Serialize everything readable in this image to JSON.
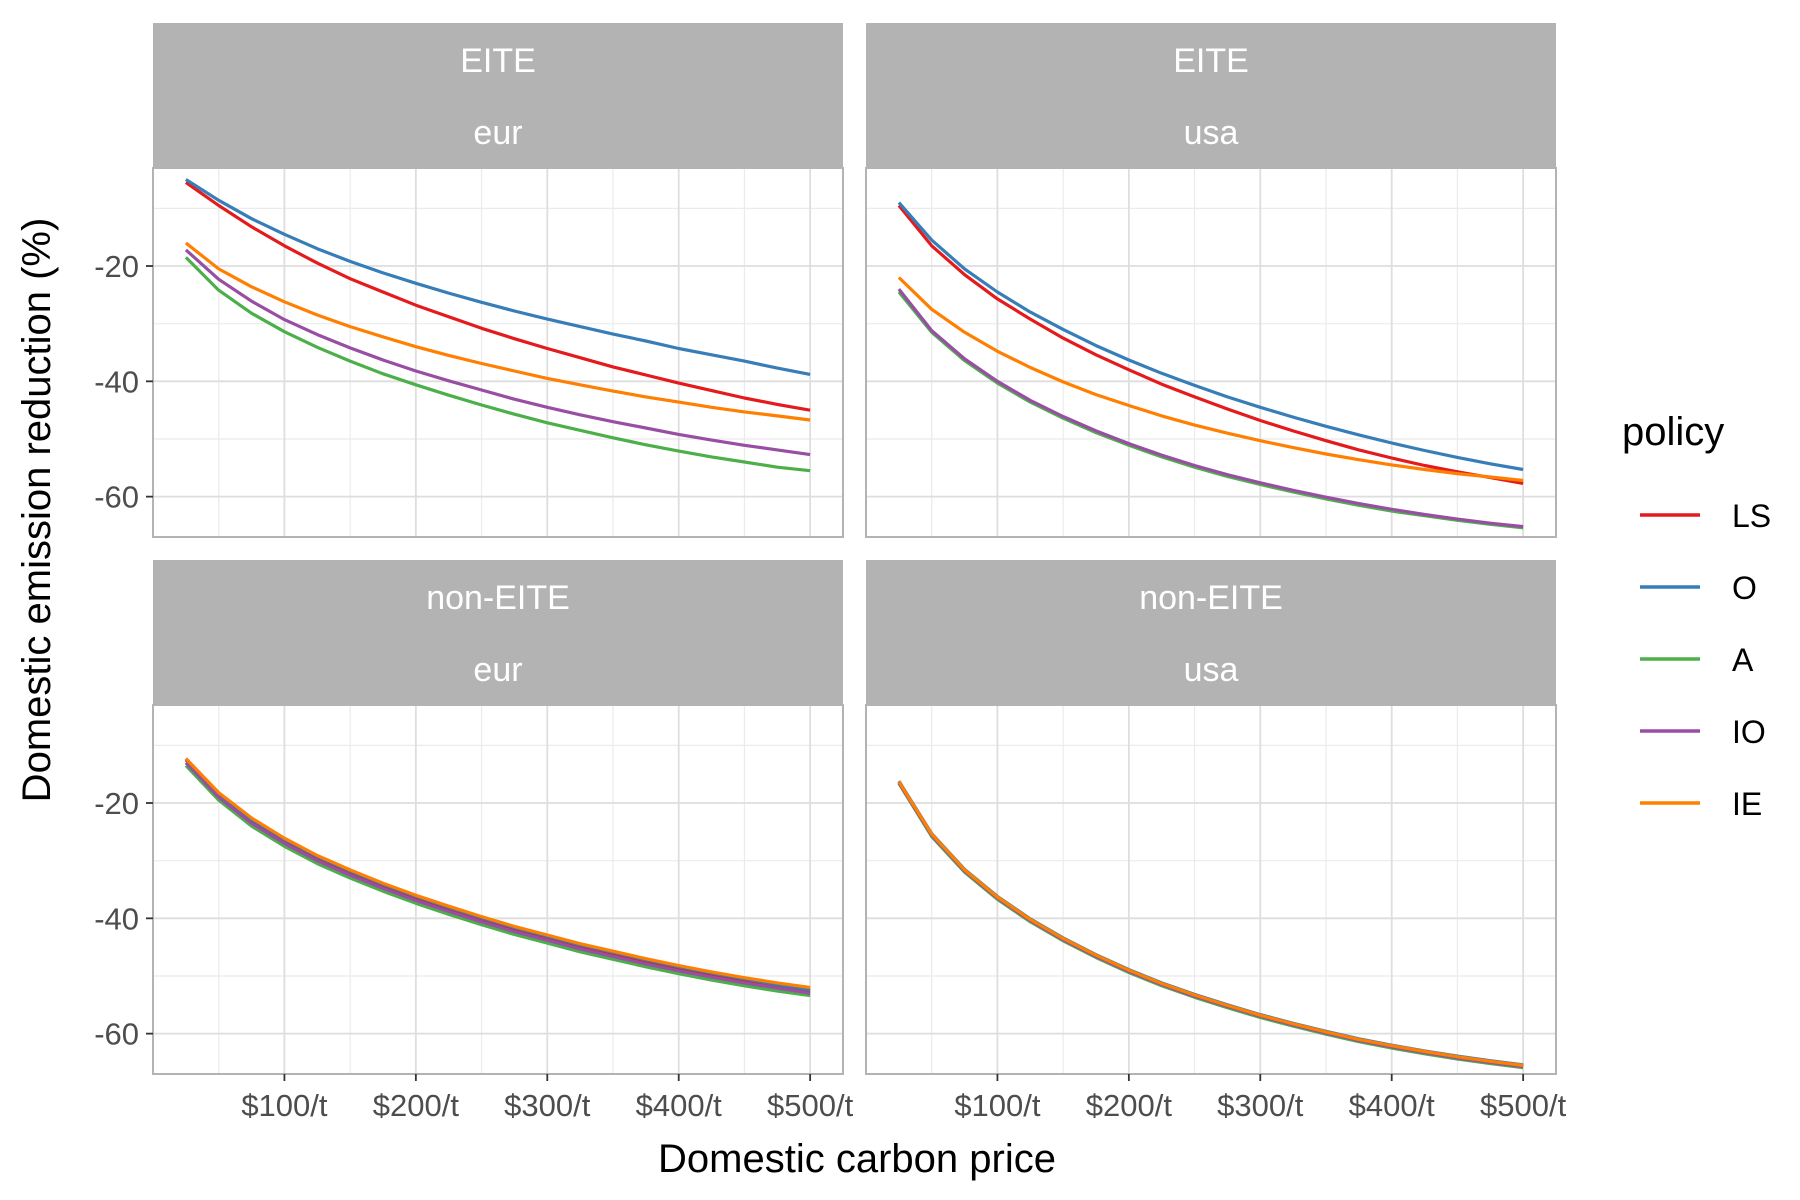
{
  "chart_data": {
    "type": "line",
    "xlabel": "Domestic carbon price",
    "ylabel": "Domestic emission reduction (%)",
    "x": [
      25,
      50,
      75,
      100,
      125,
      150,
      175,
      200,
      225,
      250,
      275,
      300,
      325,
      350,
      375,
      400,
      425,
      450,
      475,
      500
    ],
    "xlim": [
      0,
      525
    ],
    "x_ticks": [
      100,
      200,
      300,
      400,
      500
    ],
    "x_tick_labels": [
      "$100/t",
      "$200/t",
      "$300/t",
      "$400/t",
      "$500/t"
    ],
    "ylim": [
      -67,
      -3
    ],
    "y_ticks": [
      -20,
      -40,
      -60
    ],
    "y_tick_labels": [
      "-20",
      "-40",
      "-60"
    ],
    "grid": true,
    "legend": {
      "title": "policy",
      "position": "right",
      "entries": [
        {
          "label": "LS",
          "color": "#E41A1C"
        },
        {
          "label": "O",
          "color": "#377EB8"
        },
        {
          "label": "A",
          "color": "#4DAF4A"
        },
        {
          "label": "IO",
          "color": "#984EA3"
        },
        {
          "label": "IE",
          "color": "#FF7F00"
        }
      ]
    },
    "panels": [
      {
        "strip_top": "EITE",
        "strip_bottom": "eur",
        "series": [
          {
            "name": "LS",
            "values": [
              -5.5,
              -9.5,
              -13.2,
              -16.5,
              -19.5,
              -22.2,
              -24.5,
              -26.8,
              -28.8,
              -30.8,
              -32.6,
              -34.3,
              -35.9,
              -37.5,
              -38.9,
              -40.3,
              -41.6,
              -42.9,
              -44.0,
              -45.0
            ]
          },
          {
            "name": "O",
            "values": [
              -5.0,
              -8.6,
              -11.8,
              -14.5,
              -17.0,
              -19.2,
              -21.2,
              -23.0,
              -24.7,
              -26.3,
              -27.8,
              -29.2,
              -30.5,
              -31.8,
              -33.0,
              -34.3,
              -35.4,
              -36.5,
              -37.7,
              -38.8
            ]
          },
          {
            "name": "A",
            "values": [
              -18.5,
              -24.2,
              -28.2,
              -31.4,
              -34.1,
              -36.5,
              -38.7,
              -40.6,
              -42.4,
              -44.1,
              -45.7,
              -47.2,
              -48.5,
              -49.8,
              -51.0,
              -52.1,
              -53.1,
              -54.0,
              -54.9,
              -55.5
            ]
          },
          {
            "name": "IO",
            "values": [
              -17.2,
              -22.3,
              -26.1,
              -29.3,
              -31.9,
              -34.2,
              -36.3,
              -38.2,
              -39.9,
              -41.5,
              -43.1,
              -44.5,
              -45.8,
              -47.0,
              -48.1,
              -49.2,
              -50.2,
              -51.1,
              -51.9,
              -52.7
            ]
          },
          {
            "name": "IE",
            "values": [
              -16.0,
              -20.5,
              -23.6,
              -26.2,
              -28.5,
              -30.5,
              -32.3,
              -34.0,
              -35.5,
              -36.9,
              -38.2,
              -39.5,
              -40.6,
              -41.7,
              -42.7,
              -43.6,
              -44.5,
              -45.3,
              -46.0,
              -46.7
            ]
          }
        ]
      },
      {
        "strip_top": "EITE",
        "strip_bottom": "usa",
        "series": [
          {
            "name": "LS",
            "values": [
              -9.5,
              -16.5,
              -21.5,
              -25.7,
              -29.2,
              -32.5,
              -35.4,
              -38.0,
              -40.5,
              -42.7,
              -44.8,
              -46.8,
              -48.6,
              -50.3,
              -51.9,
              -53.3,
              -54.6,
              -55.7,
              -56.7,
              -57.7
            ]
          },
          {
            "name": "O",
            "values": [
              -9.0,
              -15.5,
              -20.5,
              -24.5,
              -28.0,
              -31.0,
              -33.8,
              -36.3,
              -38.6,
              -40.7,
              -42.7,
              -44.5,
              -46.2,
              -47.8,
              -49.3,
              -50.7,
              -52.0,
              -53.2,
              -54.3,
              -55.3
            ]
          },
          {
            "name": "A",
            "values": [
              -24.5,
              -31.5,
              -36.4,
              -40.3,
              -43.6,
              -46.4,
              -48.9,
              -51.1,
              -53.1,
              -54.9,
              -56.5,
              -57.9,
              -59.2,
              -60.4,
              -61.5,
              -62.5,
              -63.3,
              -64.1,
              -64.8,
              -65.4
            ]
          },
          {
            "name": "IO",
            "values": [
              -24.0,
              -31.2,
              -36.1,
              -40.0,
              -43.3,
              -46.1,
              -48.6,
              -50.8,
              -52.8,
              -54.6,
              -56.2,
              -57.6,
              -58.9,
              -60.1,
              -61.2,
              -62.2,
              -63.1,
              -63.9,
              -64.6,
              -65.2
            ]
          },
          {
            "name": "IE",
            "values": [
              -22.0,
              -27.5,
              -31.5,
              -34.8,
              -37.6,
              -40.1,
              -42.3,
              -44.2,
              -46.0,
              -47.6,
              -49.0,
              -50.3,
              -51.5,
              -52.6,
              -53.6,
              -54.5,
              -55.3,
              -56.0,
              -56.6,
              -57.2
            ]
          }
        ]
      },
      {
        "strip_top": "non-EITE",
        "strip_bottom": "eur",
        "series": [
          {
            "name": "LS",
            "values": [
              -12.5,
              -18.5,
              -23.0,
              -26.5,
              -29.5,
              -32.0,
              -34.3,
              -36.4,
              -38.3,
              -40.1,
              -41.8,
              -43.3,
              -44.8,
              -46.1,
              -47.4,
              -48.6,
              -49.7,
              -50.7,
              -51.7,
              -52.6
            ]
          },
          {
            "name": "O",
            "values": [
              -12.3,
              -18.3,
              -22.8,
              -26.3,
              -29.3,
              -31.8,
              -34.1,
              -36.2,
              -38.1,
              -39.9,
              -41.6,
              -43.1,
              -44.6,
              -45.9,
              -47.2,
              -48.4,
              -49.5,
              -50.5,
              -51.5,
              -52.4
            ]
          },
          {
            "name": "A",
            "values": [
              -13.5,
              -19.5,
              -24.0,
              -27.5,
              -30.5,
              -33.0,
              -35.3,
              -37.4,
              -39.3,
              -41.1,
              -42.8,
              -44.3,
              -45.8,
              -47.1,
              -48.4,
              -49.6,
              -50.7,
              -51.7,
              -52.6,
              -53.4
            ]
          },
          {
            "name": "IO",
            "values": [
              -13.0,
              -19.0,
              -23.5,
              -27.0,
              -30.0,
              -32.5,
              -34.8,
              -36.9,
              -38.8,
              -40.6,
              -42.3,
              -43.8,
              -45.3,
              -46.6,
              -47.9,
              -49.1,
              -50.2,
              -51.2,
              -52.1,
              -53.0
            ]
          },
          {
            "name": "IE",
            "values": [
              -12.3,
              -18.2,
              -22.6,
              -26.1,
              -29.1,
              -31.6,
              -33.9,
              -36.0,
              -37.9,
              -39.7,
              -41.4,
              -42.9,
              -44.4,
              -45.7,
              -47.0,
              -48.2,
              -49.3,
              -50.3,
              -51.2,
              -52.0
            ]
          }
        ]
      },
      {
        "strip_top": "non-EITE",
        "strip_bottom": "usa",
        "series": [
          {
            "name": "LS",
            "values": [
              -16.3,
              -25.4,
              -31.6,
              -36.3,
              -40.2,
              -43.5,
              -46.4,
              -49.0,
              -51.3,
              -53.3,
              -55.1,
              -56.8,
              -58.3,
              -59.7,
              -61.0,
              -62.1,
              -63.1,
              -64.0,
              -64.8,
              -65.5
            ]
          },
          {
            "name": "O",
            "values": [
              -16.2,
              -25.3,
              -31.5,
              -36.2,
              -40.1,
              -43.4,
              -46.3,
              -48.9,
              -51.2,
              -53.2,
              -55.0,
              -56.7,
              -58.2,
              -59.6,
              -60.9,
              -62.0,
              -63.0,
              -63.9,
              -64.7,
              -65.4
            ]
          },
          {
            "name": "A",
            "values": [
              -16.6,
              -25.8,
              -32.0,
              -36.7,
              -40.6,
              -43.9,
              -46.8,
              -49.4,
              -51.7,
              -53.7,
              -55.5,
              -57.2,
              -58.7,
              -60.1,
              -61.4,
              -62.5,
              -63.5,
              -64.4,
              -65.2,
              -65.9
            ]
          },
          {
            "name": "IO",
            "values": [
              -16.5,
              -25.6,
              -31.8,
              -36.5,
              -40.4,
              -43.7,
              -46.6,
              -49.2,
              -51.5,
              -53.5,
              -55.3,
              -57.0,
              -58.5,
              -59.9,
              -61.2,
              -62.3,
              -63.3,
              -64.2,
              -65.0,
              -65.7
            ]
          },
          {
            "name": "IE",
            "values": [
              -16.3,
              -25.4,
              -31.6,
              -36.3,
              -40.2,
              -43.5,
              -46.4,
              -49.0,
              -51.3,
              -53.3,
              -55.1,
              -56.8,
              -58.3,
              -59.7,
              -61.0,
              -62.1,
              -63.1,
              -64.0,
              -64.8,
              -65.5
            ]
          }
        ]
      }
    ]
  }
}
